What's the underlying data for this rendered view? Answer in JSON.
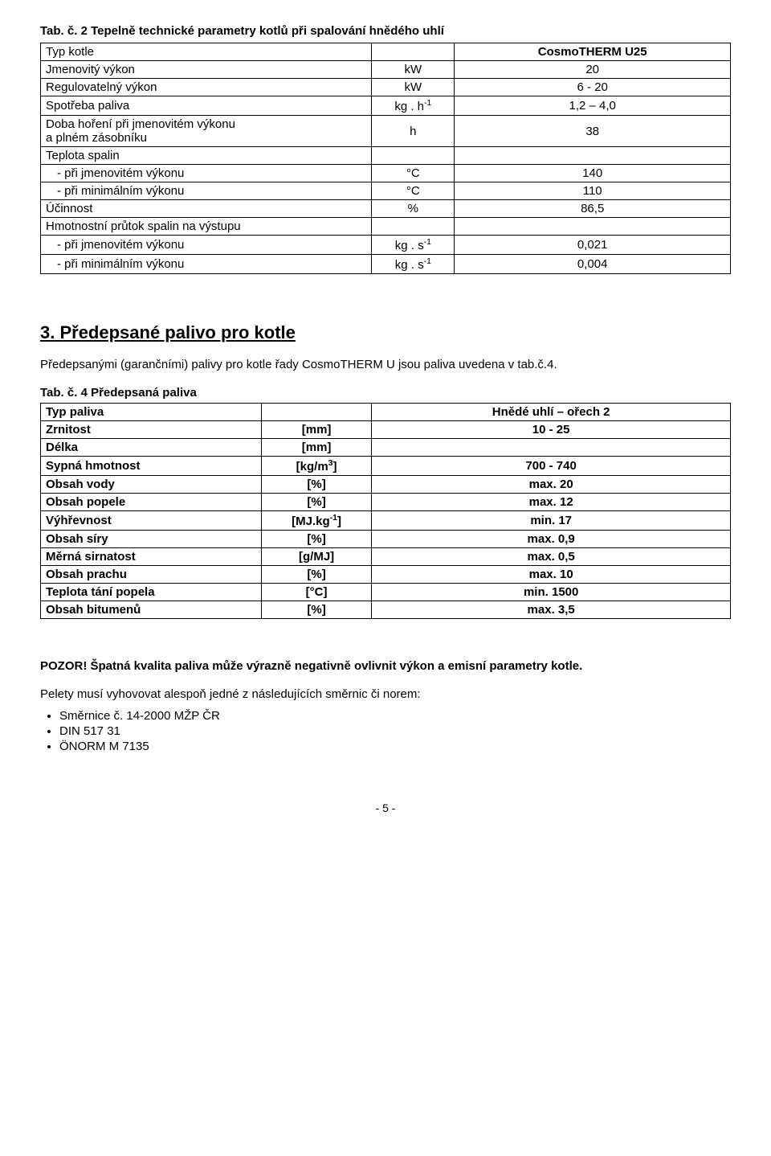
{
  "table1": {
    "caption": "Tab. č. 2  Tepelně technické parametry kotlů při spalování hnědého uhlí",
    "header": {
      "c1": "Typ kotle",
      "c2": "",
      "c3": "CosmoTHERM U25"
    },
    "rows": [
      {
        "c1": "Jmenovitý výkon",
        "c2": "kW",
        "c3": "20"
      },
      {
        "c1": "Regulovatelný výkon",
        "c2": "kW",
        "c3": "6 - 20"
      },
      {
        "c1": "Spotřeba paliva",
        "c2_html": "kg . h<sup>-1</sup>",
        "c3": "1,2 – 4,0"
      },
      {
        "c1_html": "Doba hoření při jmenovitém výkonu<br>a plném zásobníku",
        "c2": "h",
        "c3": "38"
      },
      {
        "c1": "Teplota spalin",
        "c2": "",
        "c3": ""
      },
      {
        "c1": "  - při jmenovitém výkonu",
        "c2": "°C",
        "c3": "140",
        "indent": true
      },
      {
        "c1": "  - při minimálním výkonu",
        "c2": "°C",
        "c3": "110",
        "indent": true
      },
      {
        "c1": "Účinnost",
        "c2": "%",
        "c3": "86,5"
      },
      {
        "c1": "Hmotnostní průtok spalin na výstupu",
        "c2": "",
        "c3": ""
      },
      {
        "c1": "  - při jmenovitém výkonu",
        "c2_html": "kg . s<sup>-1</sup>",
        "c3": "0,021",
        "indent": true
      },
      {
        "c1": "  - při minimálním výkonu",
        "c2_html": "kg . s<sup>-1</sup>",
        "c3": "0,004",
        "indent": true
      }
    ]
  },
  "section": {
    "heading": "3.  Předepsané palivo pro kotle",
    "intro": "Předepsanými (garančními) palivy pro kotle řady CosmoTHERM U jsou paliva uvedena v tab.č.4."
  },
  "table2": {
    "caption": "Tab. č. 4  Předepsaná paliva",
    "header": {
      "c1": "Typ paliva",
      "c2": "",
      "c3": "Hnědé uhlí – ořech 2"
    },
    "rows": [
      {
        "c1": "Zrnitost",
        "c2": "[mm]",
        "c3": "10 - 25"
      },
      {
        "c1": "Délka",
        "c2": "[mm]",
        "c3": ""
      },
      {
        "c1": "Sypná hmotnost",
        "c2_html": "[kg/m<sup>3</sup>]",
        "c3": "700 - 740"
      },
      {
        "c1": "Obsah vody",
        "c2": "[%]",
        "c3": "max. 20"
      },
      {
        "c1": "Obsah popele",
        "c2": "[%]",
        "c3": "max. 12"
      },
      {
        "c1": "Výhřevnost",
        "c2_html": "[MJ.kg<sup>-1</sup>]",
        "c3": "min. 17"
      },
      {
        "c1": "Obsah síry",
        "c2": "[%]",
        "c3": "max. 0,9"
      },
      {
        "c1": "Měrná sirnatost",
        "c2": "[g/MJ]",
        "c3": "max. 0,5"
      },
      {
        "c1": "Obsah prachu",
        "c2": "[%]",
        "c3": "max. 10"
      },
      {
        "c1": "Teplota tání popela",
        "c2": "[°C]",
        "c3": "min. 1500"
      },
      {
        "c1": "Obsah bitumenů",
        "c2": "[%]",
        "c3": "max. 3,5"
      }
    ]
  },
  "warning": "POZOR! Špatná kvalita paliva může výrazně negativně ovlivnit výkon a emisní parametry kotle.",
  "norms": {
    "lead": "Pelety musí vyhovovat alespoň jedné z následujících směrnic či norem:",
    "items": [
      "Směrnice č. 14-2000 MŽP ČR",
      "DIN 517 31",
      "ÖNORM M 7135"
    ]
  },
  "page": "- 5 -"
}
